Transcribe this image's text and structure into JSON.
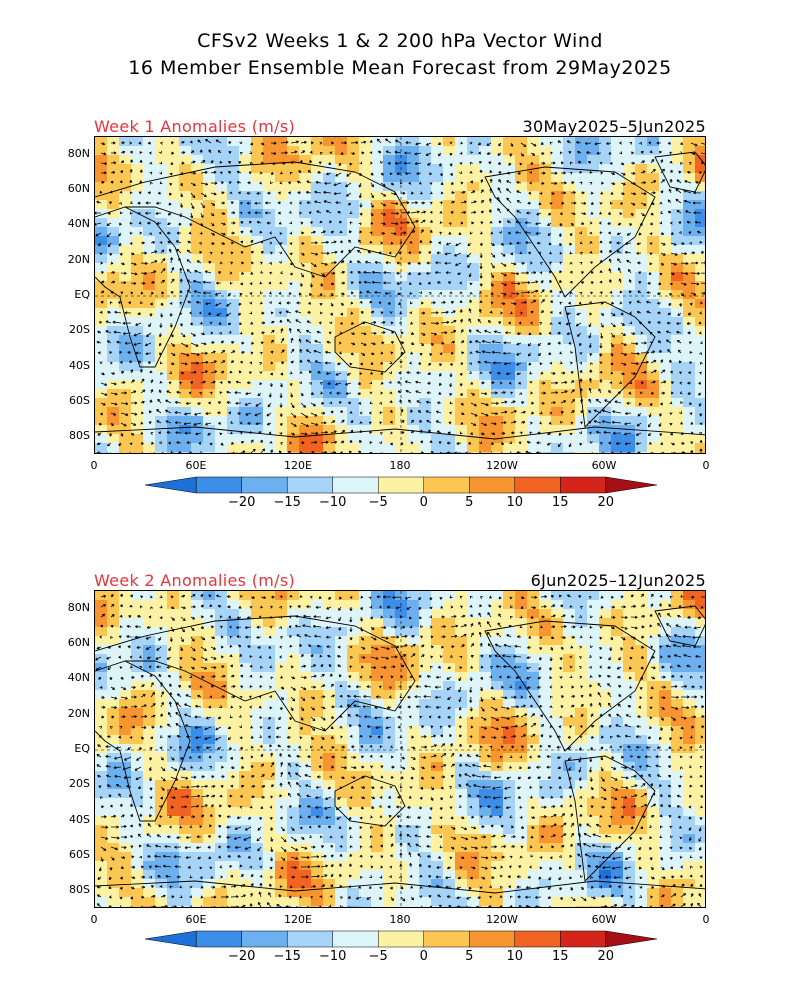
{
  "title_line1": "CFSv2 Weeks 1 & 2 200 hPa Vector Wind",
  "title_line2": "16 Member Ensemble Mean Forecast from 29May2025",
  "panels": [
    {
      "label": "Week 1 Anomalies (m/s)",
      "dates": "30May2025–5Jun2025"
    },
    {
      "label": "Week 2 Anomalies (m/s)",
      "dates": "6Jun2025–12Jun2025"
    }
  ],
  "lat_ticks": [
    "80N",
    "60N",
    "40N",
    "20N",
    "EQ",
    "20S",
    "40S",
    "60S",
    "80S"
  ],
  "lon_ticks": [
    "0",
    "60E",
    "120E",
    "180",
    "120W",
    "60W",
    "0"
  ],
  "colorbar_ticks": [
    "−20",
    "−15",
    "−10",
    "−5",
    "0",
    "5",
    "10",
    "15",
    "20"
  ],
  "colors": {
    "levels": [
      "#1e6fd8",
      "#3c8ee8",
      "#6cb0f0",
      "#a6d4f8",
      "#ddf4f8",
      "#fdf2a4",
      "#fcc653",
      "#f99531",
      "#f06320",
      "#d4241c",
      "#a61014"
    ],
    "panel_label": "#e8343c"
  }
}
